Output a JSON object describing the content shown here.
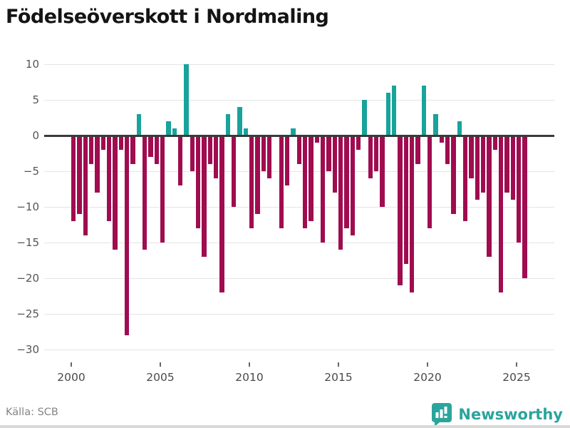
{
  "title": "Födelseöverskott i Nordmaling",
  "source": "Källa: SCB",
  "brand": {
    "name": "Newsworthy",
    "color": "#2ba49d"
  },
  "colors": {
    "positive": "#18a39b",
    "negative": "#a00c50",
    "zero_line": "#3a3a3a",
    "grid": "#e4e4e4",
    "axis_text": "#555555"
  },
  "chart_data": {
    "type": "bar",
    "title": "Födelseöverskott i Nordmaling",
    "xlabel": "",
    "ylabel": "",
    "start_year": 2000,
    "periods_per_year": 3,
    "categories_note": "tertials from 2000 (Jan–Apr, May–Aug, Sep–Dec) through 2025 period 2",
    "values": [
      -12,
      -11,
      -14,
      -4,
      -8,
      -2,
      -12,
      -16,
      -2,
      -28,
      -4,
      3,
      -16,
      -3,
      -4,
      -15,
      2,
      1,
      -7,
      10,
      -5,
      -13,
      -17,
      -4,
      -6,
      -22,
      3,
      -10,
      4,
      1,
      -13,
      -11,
      -5,
      -6,
      0,
      -13,
      -7,
      1,
      -4,
      -13,
      -12,
      -1,
      -15,
      -5,
      -8,
      -16,
      -13,
      -14,
      -2,
      5,
      -6,
      -5,
      -10,
      6,
      7,
      -21,
      -18,
      -22,
      -4,
      7,
      -13,
      3,
      -1,
      -4,
      -11,
      2,
      -12,
      -6,
      -9,
      -8,
      -17,
      -2,
      -22,
      -8,
      -9,
      -15,
      -20
    ],
    "x_ticks": [
      2000,
      2005,
      2010,
      2015,
      2020,
      2025
    ],
    "y_ticks": [
      10,
      5,
      0,
      -5,
      -10,
      -15,
      -20,
      -25,
      -30
    ],
    "ylim": [
      -30,
      10
    ],
    "grid": true,
    "legend": false
  }
}
